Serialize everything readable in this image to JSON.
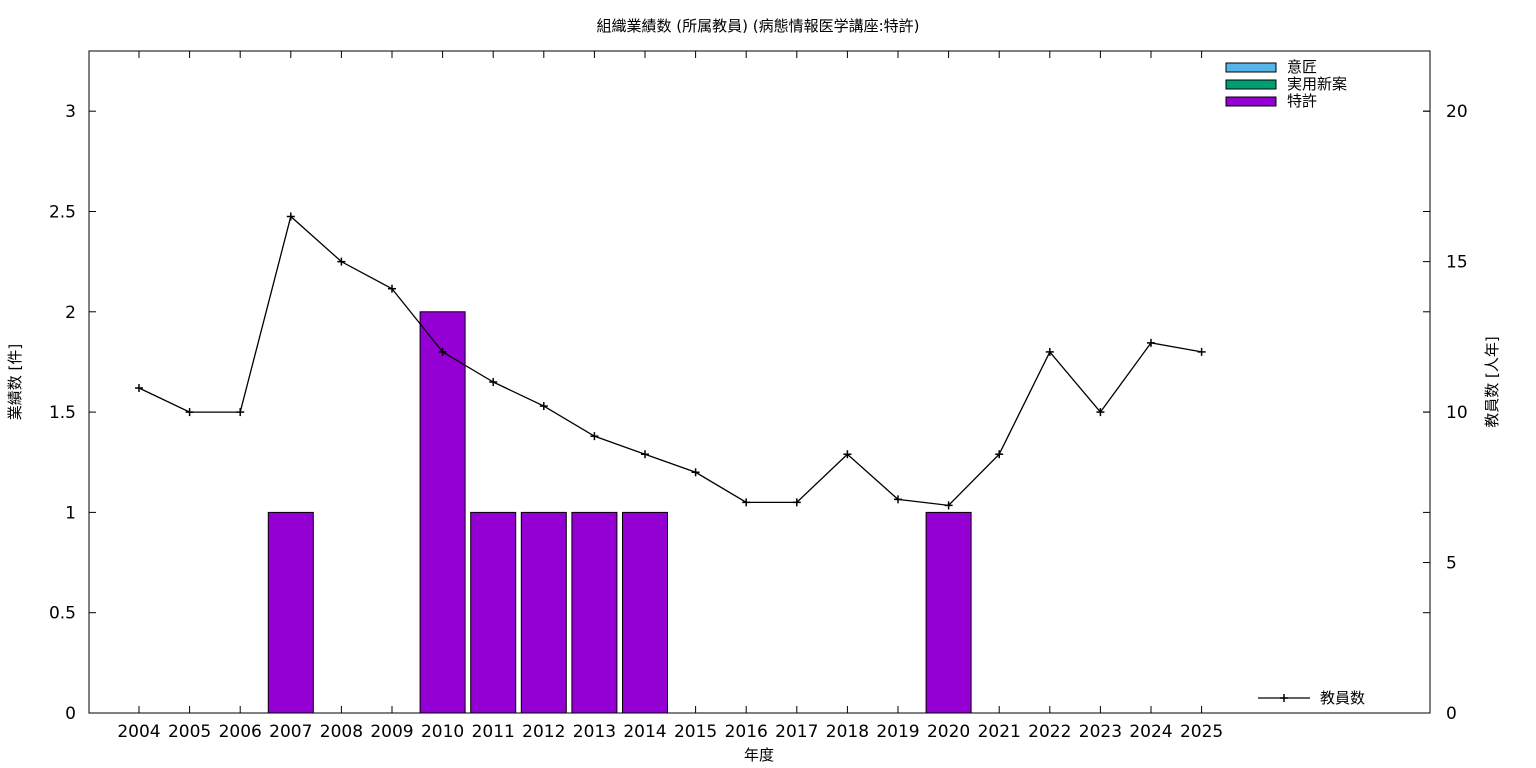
{
  "chart_data": {
    "type": "bar+line",
    "title": "組織業績数 (所属教員) (病態情報医学講座:特許)",
    "xlabel": "年度",
    "ylabel": "業績数 [件]",
    "y2label": "教員数 [人年]",
    "categories": [
      "2004",
      "2005",
      "2006",
      "2007",
      "2008",
      "2009",
      "2010",
      "2011",
      "2012",
      "2013",
      "2014",
      "2015",
      "2016",
      "2017",
      "2018",
      "2019",
      "2020",
      "2021",
      "2022",
      "2023",
      "2024",
      "2025"
    ],
    "ylim": [
      0,
      3.3
    ],
    "y_ticks": [
      "0",
      "0.5",
      "1",
      "1.5",
      "2",
      "2.5",
      "3"
    ],
    "y2lim": [
      0,
      22
    ],
    "y2_ticks": [
      "0",
      "5",
      "10",
      "15",
      "20"
    ],
    "bar_series": [
      {
        "name": "意匠",
        "color": "#56b4e9",
        "values": [
          0,
          0,
          0,
          0,
          0,
          0,
          0,
          0,
          0,
          0,
          0,
          0,
          0,
          0,
          0,
          0,
          0,
          0,
          0,
          0,
          0,
          0
        ]
      },
      {
        "name": "実用新案",
        "color": "#009e73",
        "values": [
          0,
          0,
          0,
          0,
          0,
          0,
          0,
          0,
          0,
          0,
          0,
          0,
          0,
          0,
          0,
          0,
          0,
          0,
          0,
          0,
          0,
          0
        ]
      },
      {
        "name": "特許",
        "color": "#9400d3",
        "values": [
          0,
          0,
          0,
          1,
          0,
          0,
          2,
          1,
          1,
          1,
          1,
          0,
          0,
          0,
          0,
          0,
          1,
          0,
          0,
          0,
          0,
          0
        ]
      }
    ],
    "line_series": {
      "name": "教員数",
      "color": "#000000",
      "axis": "y2",
      "values": [
        10.8,
        10,
        10,
        16.5,
        15,
        14.1,
        12,
        11,
        10.2,
        9.2,
        8.6,
        8,
        7,
        7,
        8.6,
        7.1,
        6.9,
        8.6,
        12,
        10,
        12.3,
        12
      ]
    },
    "legend_position": "top-right",
    "line_legend_position": "bottom-right",
    "grid": false
  }
}
